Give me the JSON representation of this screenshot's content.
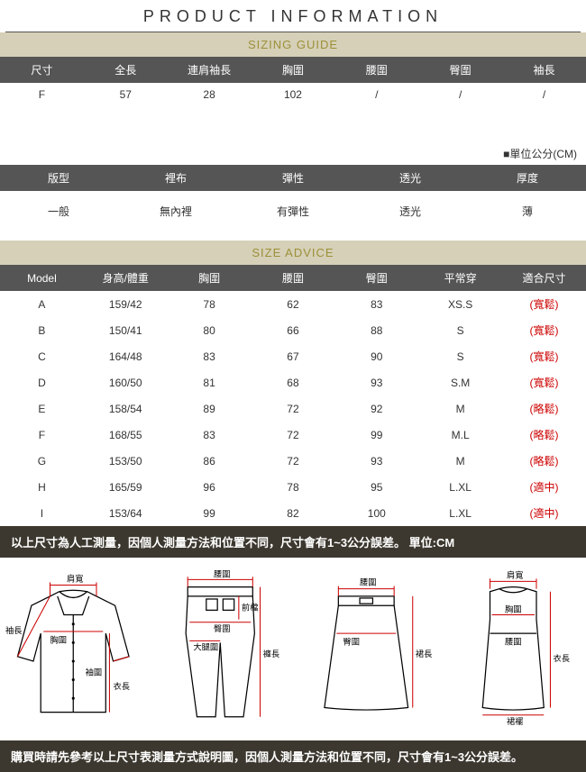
{
  "title": "PRODUCT INFORMATION",
  "banners": {
    "sizing": {
      "text": "SIZING GUIDE",
      "color": "#9c9038",
      "bg": "#d6d0b8"
    },
    "advice": {
      "text": "SIZE ADVICE",
      "color": "#9c9038",
      "bg": "#d6d0b8"
    }
  },
  "sizing_table": {
    "head_bg": "#555555",
    "head_color": "#ffffff",
    "columns": [
      "尺寸",
      "全長",
      "連肩袖長",
      "胸圍",
      "腰圍",
      "臀圍",
      "袖長"
    ],
    "rows": [
      [
        "F",
        "57",
        "28",
        "102",
        "/",
        "/",
        "/"
      ]
    ]
  },
  "unit_note": "■單位公分(CM)",
  "attr_table": {
    "columns": [
      "版型",
      "裡布",
      "彈性",
      "透光",
      "厚度"
    ],
    "rows": [
      [
        "一般",
        "無內裡",
        "有彈性",
        "透光",
        "薄"
      ]
    ]
  },
  "advice_table": {
    "columns": [
      "Model",
      "身高/體重",
      "胸圍",
      "腰圍",
      "臀圍",
      "平常穿",
      "適合尺寸"
    ],
    "fit_col_index": 6,
    "fit_color": "#cc0000",
    "rows": [
      [
        "A",
        "159/42",
        "78",
        "62",
        "83",
        "XS.S",
        "(寬鬆)"
      ],
      [
        "B",
        "150/41",
        "80",
        "66",
        "88",
        "S",
        "(寬鬆)"
      ],
      [
        "C",
        "164/48",
        "83",
        "67",
        "90",
        "S",
        "(寬鬆)"
      ],
      [
        "D",
        "160/50",
        "81",
        "68",
        "93",
        "S.M",
        "(寬鬆)"
      ],
      [
        "E",
        "158/54",
        "89",
        "72",
        "92",
        "M",
        "(略鬆)"
      ],
      [
        "F",
        "168/55",
        "83",
        "72",
        "99",
        "M.L",
        "(略鬆)"
      ],
      [
        "G",
        "153/50",
        "86",
        "72",
        "93",
        "M",
        "(略鬆)"
      ],
      [
        "H",
        "165/59",
        "96",
        "78",
        "95",
        "L.XL",
        "(適中)"
      ],
      [
        "I",
        "153/64",
        "99",
        "82",
        "100",
        "L.XL",
        "(適中)"
      ]
    ]
  },
  "strip1": "以上尺寸為人工測量，因個人測量方法和位置不同，尺寸會有1~3公分誤差。 單位:CM",
  "strip2": "購買時請先參考以上尺寸表測量方式說明圖，因個人測量方法和位置不同，尺寸會有1~3公分誤差。",
  "diagrams": {
    "shirt": {
      "labels": {
        "shoulder": "肩寬",
        "chest": "胸圍",
        "sleeve": "袖長",
        "cuff": "袖圍",
        "length": "衣長"
      }
    },
    "pants": {
      "labels": {
        "waist": "腰圍",
        "rise": "前檔",
        "hip": "臀圍",
        "thigh": "大腿圍",
        "inseam": "褲長"
      }
    },
    "skirt": {
      "labels": {
        "waist": "腰圍",
        "hip": "臀圍",
        "length": "裙長"
      }
    },
    "dress": {
      "labels": {
        "shoulder": "肩寬",
        "chest": "胸圍",
        "waist": "腰圍",
        "length": "衣長",
        "hem": "裙襬"
      }
    }
  }
}
